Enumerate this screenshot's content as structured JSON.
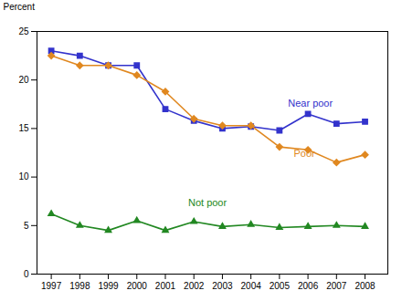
{
  "chart_data": {
    "type": "line",
    "ylabel": "Percent",
    "x": [
      1997,
      1998,
      1999,
      2000,
      2001,
      2002,
      2003,
      2004,
      2005,
      2006,
      2007,
      2008
    ],
    "series": [
      {
        "name": "Near poor",
        "color": "#3333cc",
        "marker": "square",
        "values": [
          23.0,
          22.5,
          21.5,
          21.5,
          17.0,
          15.8,
          15.0,
          15.2,
          14.8,
          16.5,
          15.5,
          15.7
        ]
      },
      {
        "name": "Poor",
        "color": "#e08820",
        "marker": "diamond",
        "values": [
          22.5,
          21.5,
          21.5,
          20.5,
          18.8,
          16.0,
          15.3,
          15.3,
          13.1,
          12.8,
          11.5,
          12.3
        ]
      },
      {
        "name": "Not poor",
        "color": "#228822",
        "marker": "triangle",
        "values": [
          6.2,
          5.0,
          4.5,
          5.5,
          4.5,
          5.4,
          4.9,
          5.1,
          4.8,
          4.9,
          5.0,
          4.9
        ]
      }
    ],
    "annotations": [
      {
        "text": "Near poor",
        "x": 2005.3,
        "y": 17.2,
        "color": "#3333cc"
      },
      {
        "text": "Poor",
        "x": 2005.5,
        "y": 12.1,
        "color": "#e08820"
      },
      {
        "text": "Not poor",
        "x": 2001.8,
        "y": 7.0,
        "color": "#228822"
      }
    ],
    "xlim": [
      1996.5,
      2008.8
    ],
    "xticks": [
      1997,
      1998,
      1999,
      2000,
      2001,
      2002,
      2003,
      2004,
      2005,
      2006,
      2007,
      2008
    ],
    "ylim": [
      0,
      25
    ],
    "yticks": [
      0,
      5,
      10,
      15,
      20,
      25
    ],
    "grid": false
  }
}
